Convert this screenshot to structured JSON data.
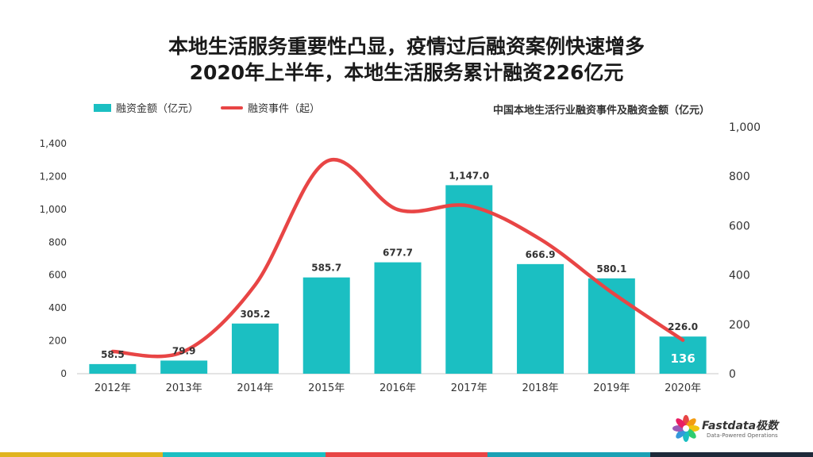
{
  "title_line1": "本地生活服务重要性凸显，疫情过后融资案例快速增多",
  "title_line2": "2020年上半年，本地生活服务累计融资226亿元",
  "legend": {
    "bar_label": "融资金额（亿元）",
    "line_label": "融资事件（起）"
  },
  "chart_title": "中国本地生活行业融资事件及融资金额（亿元）",
  "logo": {
    "name": "Fastdata极数",
    "tagline": "Data-Powered Operations"
  },
  "colors": {
    "bar": "#1bbfc2",
    "line": "#e84545",
    "bar_label_highlight": "#ffffff"
  },
  "bottom_bar_colors": [
    "#e0b420",
    "#1bbfc2",
    "#e84545",
    "#1aa1b4",
    "#1e2a3a"
  ],
  "chart_data": {
    "type": "bar",
    "categories": [
      "2012年",
      "2013年",
      "2014年",
      "2015年",
      "2016年",
      "2017年",
      "2018年",
      "2019年",
      "2020年"
    ],
    "series": [
      {
        "name": "融资金额（亿元）",
        "type": "bar",
        "axis": "left",
        "values": [
          58.5,
          79.9,
          305.2,
          585.7,
          677.7,
          1147.0,
          666.9,
          580.1,
          226.0
        ],
        "labels": [
          "58.5",
          "79.9",
          "305.2",
          "585.7",
          "677.7",
          "1,147.0",
          "666.9",
          "580.1",
          "226.0"
        ]
      },
      {
        "name": "融资事件（起）",
        "type": "line",
        "axis": "right",
        "values": [
          90,
          90,
          360,
          860,
          665,
          680,
          545,
          330,
          136
        ],
        "labels": [
          "",
          "",
          "",
          "",
          "",
          "",
          "",
          "",
          "136"
        ]
      }
    ],
    "left_axis": {
      "ylim": [
        0,
        1400
      ],
      "ticks": [
        "0",
        "200",
        "400",
        "600",
        "800",
        "1,000",
        "1,200",
        "1,400"
      ]
    },
    "right_axis": {
      "ylim": [
        0,
        1000
      ],
      "ticks": [
        "0",
        "200",
        "400",
        "600",
        "800",
        "1,000"
      ]
    },
    "grid": false,
    "legend_position": "top-left"
  }
}
